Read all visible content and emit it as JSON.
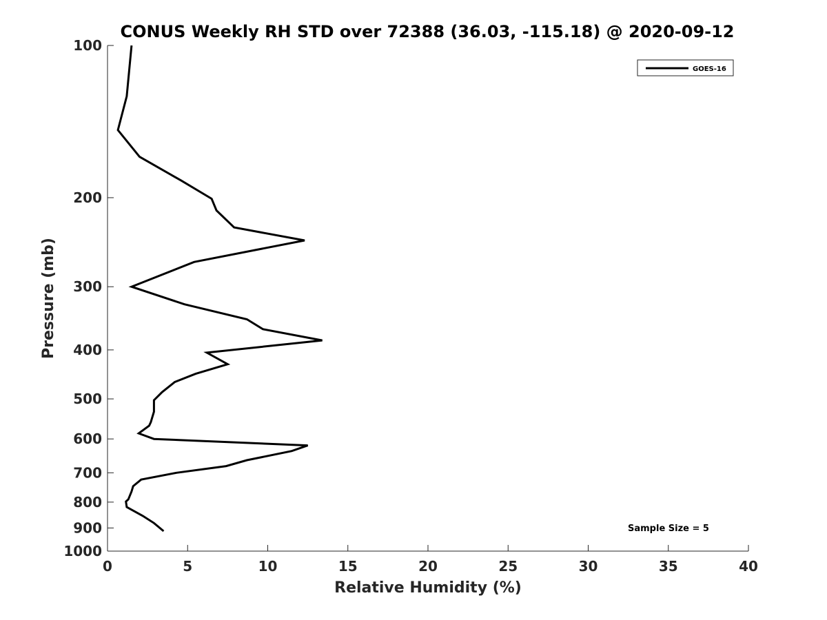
{
  "chart_data": {
    "type": "line",
    "title": "CONUS Weekly RH STD over 72388 (36.03, -115.18) @ 2020-09-12",
    "xlabel": "Relative Humidity (%)",
    "ylabel": "Pressure (mb)",
    "xlim": [
      0,
      40
    ],
    "ylim": [
      1000,
      100
    ],
    "y_scale": "log",
    "y_reversed": true,
    "grid": false,
    "legend_position": "top-right",
    "xticks": [
      0,
      5,
      10,
      15,
      20,
      25,
      30,
      35,
      40
    ],
    "yticks": [
      100,
      200,
      300,
      400,
      500,
      600,
      700,
      800,
      900,
      1000
    ],
    "series": [
      {
        "name": "GOES-16",
        "color": "#000000",
        "points": [
          {
            "x": 1.5,
            "y": 100
          },
          {
            "x": 1.2,
            "y": 126
          },
          {
            "x": 0.65,
            "y": 147
          },
          {
            "x": 2.0,
            "y": 166
          },
          {
            "x": 4.6,
            "y": 185
          },
          {
            "x": 6.5,
            "y": 201
          },
          {
            "x": 6.8,
            "y": 212
          },
          {
            "x": 7.9,
            "y": 229
          },
          {
            "x": 12.3,
            "y": 243
          },
          {
            "x": 5.4,
            "y": 268
          },
          {
            "x": 1.5,
            "y": 300
          },
          {
            "x": 4.8,
            "y": 325
          },
          {
            "x": 8.7,
            "y": 348
          },
          {
            "x": 9.7,
            "y": 364
          },
          {
            "x": 13.4,
            "y": 383
          },
          {
            "x": 6.2,
            "y": 405
          },
          {
            "x": 7.5,
            "y": 427
          },
          {
            "x": 5.5,
            "y": 446
          },
          {
            "x": 4.2,
            "y": 463
          },
          {
            "x": 3.4,
            "y": 485
          },
          {
            "x": 2.9,
            "y": 503
          },
          {
            "x": 2.9,
            "y": 530
          },
          {
            "x": 2.7,
            "y": 556
          },
          {
            "x": 2.6,
            "y": 565
          },
          {
            "x": 1.95,
            "y": 585
          },
          {
            "x": 2.9,
            "y": 600
          },
          {
            "x": 12.5,
            "y": 618
          },
          {
            "x": 11.5,
            "y": 634
          },
          {
            "x": 8.7,
            "y": 661
          },
          {
            "x": 7.4,
            "y": 679
          },
          {
            "x": 4.3,
            "y": 700
          },
          {
            "x": 2.1,
            "y": 722
          },
          {
            "x": 1.6,
            "y": 744
          },
          {
            "x": 1.5,
            "y": 762
          },
          {
            "x": 1.3,
            "y": 790
          },
          {
            "x": 1.15,
            "y": 798
          },
          {
            "x": 1.2,
            "y": 818
          },
          {
            "x": 2.2,
            "y": 852
          },
          {
            "x": 2.9,
            "y": 880
          },
          {
            "x": 3.5,
            "y": 913
          }
        ]
      }
    ],
    "legend": [
      {
        "label": "GOES-16",
        "color": "#000000"
      }
    ],
    "annotations": [
      {
        "text": "Sample Size = 5"
      }
    ]
  }
}
